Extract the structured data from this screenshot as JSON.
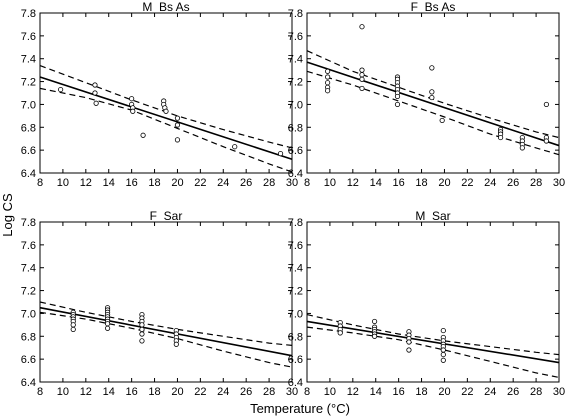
{
  "figure": {
    "xlabel": "Temperature (°C)",
    "ylabel": "Log CS"
  },
  "chart_data": [
    {
      "type": "scatter",
      "title": "M_Bs As",
      "xlim": [
        8,
        30
      ],
      "ylim": [
        6.4,
        7.8
      ],
      "x_ticks": [
        8,
        10,
        12,
        14,
        16,
        18,
        20,
        22,
        24,
        26,
        28,
        30
      ],
      "y_ticks": [
        6.4,
        6.6,
        6.8,
        7.0,
        7.2,
        7.4,
        7.6,
        7.8
      ],
      "x_tick_labels": [
        "8",
        "10",
        "12",
        "14",
        "16",
        "18",
        "20",
        "22",
        "24",
        "26",
        "28",
        "30"
      ],
      "y_tick_labels": [
        "6.4",
        "6.6",
        "6.8",
        "7.0",
        "7.2",
        "7.4",
        "7.6",
        "7.8"
      ],
      "points": [
        [
          9.8,
          7.13
        ],
        [
          12.8,
          7.17
        ],
        [
          12.8,
          7.1
        ],
        [
          12.9,
          7.01
        ],
        [
          16,
          7.05
        ],
        [
          16,
          7.0
        ],
        [
          16.1,
          6.97
        ],
        [
          16.1,
          6.94
        ],
        [
          17,
          6.73
        ],
        [
          18.8,
          7.03
        ],
        [
          18.8,
          7.0
        ],
        [
          18.9,
          6.97
        ],
        [
          19,
          6.94
        ],
        [
          20,
          6.88
        ],
        [
          20,
          6.82
        ],
        [
          20,
          6.69
        ],
        [
          25,
          6.63
        ],
        [
          29,
          6.57
        ]
      ],
      "fit_line": [
        [
          8,
          7.24
        ],
        [
          30,
          6.52
        ]
      ],
      "ci_upper": [
        [
          8,
          7.34
        ],
        [
          12,
          7.19
        ],
        [
          16,
          7.04
        ],
        [
          20,
          6.9
        ],
        [
          24,
          6.78
        ],
        [
          28,
          6.67
        ],
        [
          30,
          6.62
        ]
      ],
      "ci_lower": [
        [
          8,
          7.14
        ],
        [
          12,
          7.06
        ],
        [
          16,
          6.95
        ],
        [
          20,
          6.79
        ],
        [
          24,
          6.63
        ],
        [
          28,
          6.48
        ],
        [
          30,
          6.41
        ]
      ]
    },
    {
      "type": "scatter",
      "title": "F_Bs As",
      "xlim": [
        8,
        30
      ],
      "ylim": [
        6.4,
        7.8
      ],
      "x_ticks": [
        8,
        10,
        12,
        14,
        16,
        18,
        20,
        22,
        24,
        26,
        28,
        30
      ],
      "y_ticks": [
        6.4,
        6.6,
        6.8,
        7.0,
        7.2,
        7.4,
        7.6,
        7.8
      ],
      "x_tick_labels": [
        "8",
        "10",
        "12",
        "14",
        "16",
        "18",
        "20",
        "22",
        "24",
        "26",
        "28",
        "30"
      ],
      "y_tick_labels": [
        "6.4",
        "6.6",
        "6.8",
        "7.0",
        "7.2",
        "7.4",
        "7.6",
        "7.8"
      ],
      "points": [
        [
          9.8,
          7.29
        ],
        [
          9.8,
          7.24
        ],
        [
          9.8,
          7.19
        ],
        [
          9.8,
          7.15
        ],
        [
          9.8,
          7.12
        ],
        [
          12.8,
          7.68
        ],
        [
          12.8,
          7.3
        ],
        [
          12.8,
          7.26
        ],
        [
          12.8,
          7.22
        ],
        [
          12.8,
          7.14
        ],
        [
          15.9,
          7.24
        ],
        [
          15.9,
          7.22
        ],
        [
          15.9,
          7.19
        ],
        [
          15.9,
          7.16
        ],
        [
          15.9,
          7.13
        ],
        [
          15.9,
          7.1
        ],
        [
          15.9,
          7.07
        ],
        [
          15.9,
          7.0
        ],
        [
          18.9,
          7.32
        ],
        [
          18.9,
          7.11
        ],
        [
          18.9,
          7.06
        ],
        [
          19.8,
          6.86
        ],
        [
          24.9,
          6.78
        ],
        [
          24.9,
          6.76
        ],
        [
          24.9,
          6.74
        ],
        [
          24.9,
          6.71
        ],
        [
          26.8,
          6.71
        ],
        [
          26.8,
          6.68
        ],
        [
          26.8,
          6.65
        ],
        [
          26.8,
          6.62
        ],
        [
          28.9,
          7.0
        ],
        [
          28.9,
          6.71
        ],
        [
          28.9,
          6.68
        ]
      ],
      "fit_line": [
        [
          8,
          7.37
        ],
        [
          30,
          6.64
        ]
      ],
      "ci_upper": [
        [
          8,
          7.47
        ],
        [
          12,
          7.29
        ],
        [
          16,
          7.15
        ],
        [
          20,
          7.01
        ],
        [
          24,
          6.88
        ],
        [
          28,
          6.76
        ],
        [
          30,
          6.71
        ]
      ],
      "ci_lower": [
        [
          8,
          7.29
        ],
        [
          12,
          7.17
        ],
        [
          16,
          7.03
        ],
        [
          20,
          6.89
        ],
        [
          24,
          6.74
        ],
        [
          28,
          6.62
        ],
        [
          30,
          6.56
        ]
      ]
    },
    {
      "type": "scatter",
      "title": "F_Sar",
      "xlim": [
        8,
        30
      ],
      "ylim": [
        6.4,
        7.8
      ],
      "x_ticks": [
        8,
        10,
        12,
        14,
        16,
        18,
        20,
        22,
        24,
        26,
        28,
        30
      ],
      "y_ticks": [
        6.4,
        6.6,
        6.8,
        7.0,
        7.2,
        7.4,
        7.6,
        7.8
      ],
      "x_tick_labels": [
        "8",
        "10",
        "12",
        "14",
        "16",
        "18",
        "20",
        "22",
        "24",
        "26",
        "28",
        "30"
      ],
      "y_tick_labels": [
        "6.4",
        "6.6",
        "6.8",
        "7.0",
        "7.2",
        "7.4",
        "7.6",
        "7.8"
      ],
      "points": [
        [
          10.9,
          7.01
        ],
        [
          10.9,
          6.99
        ],
        [
          10.9,
          6.97
        ],
        [
          10.9,
          6.95
        ],
        [
          10.9,
          6.93
        ],
        [
          10.9,
          6.9
        ],
        [
          10.9,
          6.86
        ],
        [
          13.9,
          7.05
        ],
        [
          13.9,
          7.03
        ],
        [
          13.9,
          7.01
        ],
        [
          13.9,
          6.99
        ],
        [
          13.9,
          6.97
        ],
        [
          13.9,
          6.95
        ],
        [
          13.9,
          6.93
        ],
        [
          13.9,
          6.91
        ],
        [
          13.9,
          6.87
        ],
        [
          16.9,
          6.99
        ],
        [
          16.9,
          6.96
        ],
        [
          16.9,
          6.93
        ],
        [
          16.9,
          6.9
        ],
        [
          16.9,
          6.86
        ],
        [
          16.9,
          6.82
        ],
        [
          16.9,
          6.76
        ],
        [
          19.9,
          6.85
        ],
        [
          19.9,
          6.82
        ],
        [
          19.9,
          6.79
        ],
        [
          19.9,
          6.76
        ],
        [
          19.9,
          6.73
        ]
      ],
      "fit_line": [
        [
          8,
          7.05
        ],
        [
          30,
          6.63
        ]
      ],
      "ci_upper": [
        [
          8,
          7.1
        ],
        [
          12,
          7.01
        ],
        [
          16,
          6.93
        ],
        [
          20,
          6.86
        ],
        [
          24,
          6.8
        ],
        [
          28,
          6.74
        ],
        [
          30,
          6.72
        ]
      ],
      "ci_lower": [
        [
          8,
          7.01
        ],
        [
          12,
          6.95
        ],
        [
          16,
          6.87
        ],
        [
          20,
          6.78
        ],
        [
          24,
          6.67
        ],
        [
          28,
          6.57
        ],
        [
          30,
          6.53
        ]
      ]
    },
    {
      "type": "scatter",
      "title": "M_Sar",
      "xlim": [
        8,
        30
      ],
      "ylim": [
        6.4,
        7.8
      ],
      "x_ticks": [
        8,
        10,
        12,
        14,
        16,
        18,
        20,
        22,
        24,
        26,
        28,
        30
      ],
      "y_ticks": [
        6.4,
        6.6,
        6.8,
        7.0,
        7.2,
        7.4,
        7.6,
        7.8
      ],
      "x_tick_labels": [
        "8",
        "10",
        "12",
        "14",
        "16",
        "18",
        "20",
        "22",
        "24",
        "26",
        "28",
        "30"
      ],
      "y_tick_labels": [
        "6.4",
        "6.6",
        "6.8",
        "7.0",
        "7.2",
        "7.4",
        "7.6",
        "7.8"
      ],
      "points": [
        [
          10.9,
          6.92
        ],
        [
          10.9,
          6.89
        ],
        [
          10.9,
          6.86
        ],
        [
          10.9,
          6.83
        ],
        [
          13.9,
          6.93
        ],
        [
          13.9,
          6.88
        ],
        [
          13.9,
          6.86
        ],
        [
          13.9,
          6.84
        ],
        [
          13.9,
          6.82
        ],
        [
          13.9,
          6.8
        ],
        [
          16.9,
          6.84
        ],
        [
          16.9,
          6.81
        ],
        [
          16.9,
          6.78
        ],
        [
          16.9,
          6.75
        ],
        [
          16.9,
          6.68
        ],
        [
          19.9,
          6.85
        ],
        [
          19.9,
          6.79
        ],
        [
          19.9,
          6.76
        ],
        [
          19.9,
          6.73
        ],
        [
          19.9,
          6.71
        ],
        [
          19.9,
          6.68
        ],
        [
          19.9,
          6.64
        ],
        [
          19.9,
          6.59
        ]
      ],
      "fit_line": [
        [
          8,
          6.93
        ],
        [
          30,
          6.57
        ]
      ],
      "ci_upper": [
        [
          8,
          6.99
        ],
        [
          12,
          6.9
        ],
        [
          16,
          6.82
        ],
        [
          20,
          6.76
        ],
        [
          24,
          6.71
        ],
        [
          28,
          6.66
        ],
        [
          30,
          6.64
        ]
      ],
      "ci_lower": [
        [
          8,
          6.88
        ],
        [
          12,
          6.83
        ],
        [
          16,
          6.77
        ],
        [
          20,
          6.68
        ],
        [
          24,
          6.58
        ],
        [
          28,
          6.48
        ],
        [
          30,
          6.44
        ]
      ]
    }
  ]
}
